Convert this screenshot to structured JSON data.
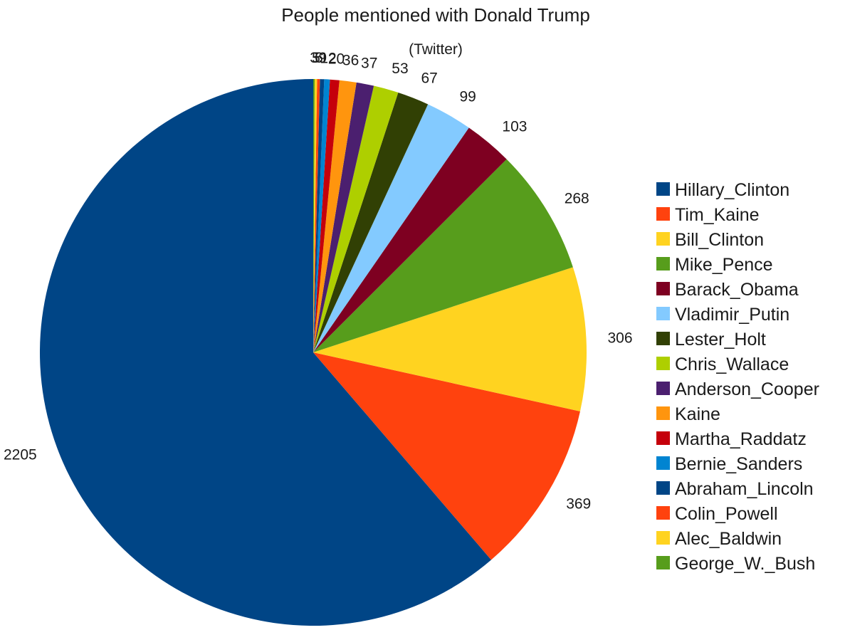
{
  "chart_data": {
    "type": "pie",
    "title": "People mentioned with Donald Trump",
    "subtitle": "(Twitter)",
    "legend_position": "right",
    "categories": [
      "Hillary_Clinton",
      "Tim_Kaine",
      "Bill_Clinton",
      "Mike_Pence",
      "Barack_Obama",
      "Vladimir_Putin",
      "Lester_Holt",
      "Chris_Wallace",
      "Anderson_Cooper",
      "Kaine",
      "Martha_Raddatz",
      "Bernie_Sanders",
      "Abraham_Lincoln",
      "Colin_Powell",
      "Alec_Baldwin",
      "George_W._Bush"
    ],
    "values": [
      2205,
      369,
      306,
      268,
      103,
      99,
      67,
      53,
      37,
      36,
      20,
      12,
      9,
      6,
      5,
      3
    ],
    "labels": [
      "2205",
      "369",
      "306",
      "268",
      "103",
      "99",
      "67",
      "53",
      "37",
      "36",
      "20",
      "12",
      "9",
      "6",
      "5",
      "3"
    ],
    "colors": [
      "#004586",
      "#ff420e",
      "#ffd320",
      "#579d1c",
      "#7e0021",
      "#83caff",
      "#314004",
      "#aecf00",
      "#4b1f6f",
      "#ff950e",
      "#c5000b",
      "#0084d1",
      "#004586",
      "#ff420e",
      "#ffd320",
      "#579d1c"
    ]
  }
}
